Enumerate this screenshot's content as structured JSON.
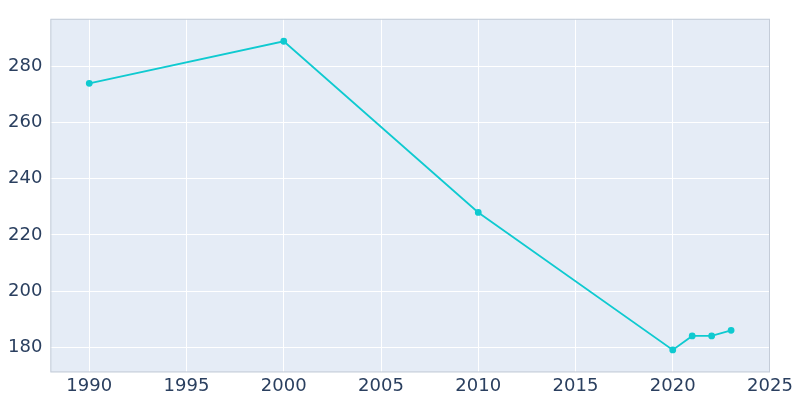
{
  "chart_data": {
    "type": "line",
    "x": [
      1990,
      2000,
      2010,
      2020,
      2021,
      2022,
      2023
    ],
    "values": [
      274,
      289,
      228,
      179,
      184,
      184,
      186
    ],
    "color": "#0fcad0",
    "marker": "circle",
    "xlim": [
      1988,
      2025
    ],
    "xticks": [
      1990,
      1995,
      2000,
      2005,
      2010,
      2015,
      2020,
      2025
    ],
    "ylim": [
      171,
      297
    ],
    "yticks": [
      180,
      200,
      220,
      240,
      260,
      280
    ],
    "grid": true
  }
}
